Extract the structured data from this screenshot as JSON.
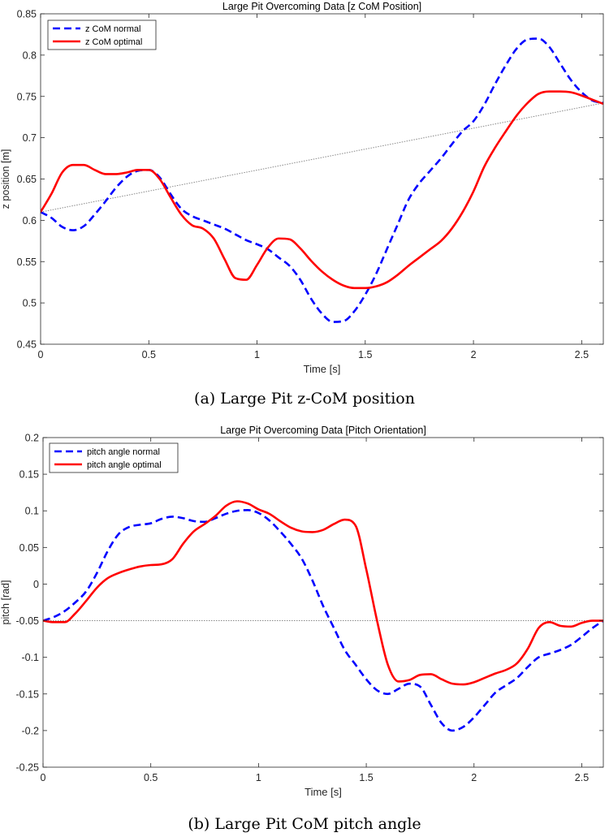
{
  "captions": {
    "a": "(a) Large Pit z-CoM position",
    "b": "(b) Large Pit CoM pitch angle"
  },
  "chart_data": [
    {
      "type": "line",
      "title": "Large Pit Overcoming Data [z CoM Position]",
      "xlabel": "Time [s]",
      "ylabel": "z position [m]",
      "xlim": [
        0,
        2.6
      ],
      "ylim": [
        0.45,
        0.85
      ],
      "xticks": [
        0,
        0.5,
        1,
        1.5,
        2,
        2.5
      ],
      "xtick_labels": [
        "0",
        "0.5",
        "1",
        "1.5",
        "2",
        "2.5"
      ],
      "yticks": [
        0.45,
        0.5,
        0.55,
        0.6,
        0.65,
        0.7,
        0.75,
        0.8,
        0.85
      ],
      "ytick_labels": [
        "0.45",
        "0.5",
        "0.55",
        "0.6",
        "0.65",
        "0.7",
        "0.75",
        "0.8",
        "0.85"
      ],
      "grid": false,
      "legend": "top-left",
      "series": [
        {
          "name": "z CoM normal",
          "color": "#0000ff",
          "style": "dashed",
          "x": [
            0,
            0.05,
            0.1,
            0.15,
            0.2,
            0.25,
            0.3,
            0.35,
            0.4,
            0.45,
            0.5,
            0.55,
            0.6,
            0.65,
            0.7,
            0.75,
            0.8,
            0.85,
            0.9,
            0.95,
            1.0,
            1.05,
            1.1,
            1.15,
            1.2,
            1.25,
            1.3,
            1.35,
            1.4,
            1.45,
            1.5,
            1.55,
            1.6,
            1.65,
            1.7,
            1.75,
            1.8,
            1.85,
            1.9,
            1.95,
            2.0,
            2.05,
            2.1,
            2.15,
            2.2,
            2.25,
            2.3,
            2.35,
            2.4,
            2.45,
            2.5,
            2.55,
            2.6
          ],
          "y": [
            0.61,
            0.603,
            0.592,
            0.588,
            0.593,
            0.607,
            0.623,
            0.64,
            0.653,
            0.66,
            0.661,
            0.652,
            0.632,
            0.614,
            0.605,
            0.6,
            0.595,
            0.59,
            0.583,
            0.576,
            0.571,
            0.565,
            0.555,
            0.545,
            0.528,
            0.505,
            0.487,
            0.477,
            0.478,
            0.49,
            0.51,
            0.535,
            0.565,
            0.595,
            0.625,
            0.645,
            0.66,
            0.675,
            0.692,
            0.708,
            0.72,
            0.74,
            0.765,
            0.788,
            0.808,
            0.819,
            0.82,
            0.81,
            0.79,
            0.77,
            0.755,
            0.745,
            0.742
          ]
        },
        {
          "name": "z CoM optimal",
          "color": "#ff0000",
          "style": "solid",
          "x": [
            0,
            0.05,
            0.1,
            0.15,
            0.2,
            0.25,
            0.3,
            0.35,
            0.4,
            0.45,
            0.5,
            0.55,
            0.6,
            0.65,
            0.7,
            0.75,
            0.8,
            0.85,
            0.9,
            0.95,
            1.0,
            1.05,
            1.1,
            1.15,
            1.2,
            1.25,
            1.3,
            1.35,
            1.4,
            1.45,
            1.5,
            1.55,
            1.6,
            1.65,
            1.7,
            1.75,
            1.8,
            1.85,
            1.9,
            1.95,
            2.0,
            2.05,
            2.1,
            2.15,
            2.2,
            2.25,
            2.3,
            2.35,
            2.4,
            2.45,
            2.5,
            2.55,
            2.6
          ],
          "y": [
            0.61,
            0.632,
            0.658,
            0.667,
            0.667,
            0.661,
            0.656,
            0.656,
            0.658,
            0.661,
            0.661,
            0.65,
            0.628,
            0.607,
            0.594,
            0.59,
            0.578,
            0.553,
            0.53,
            0.528,
            0.546,
            0.567,
            0.578,
            0.577,
            0.566,
            0.551,
            0.538,
            0.528,
            0.521,
            0.518,
            0.518,
            0.52,
            0.525,
            0.534,
            0.545,
            0.555,
            0.565,
            0.575,
            0.59,
            0.61,
            0.635,
            0.665,
            0.688,
            0.708,
            0.727,
            0.742,
            0.753,
            0.756,
            0.756,
            0.755,
            0.751,
            0.746,
            0.741
          ]
        },
        {
          "name": "",
          "color": "#888888",
          "style": "dotted",
          "x": [
            0,
            2.6
          ],
          "y": [
            0.61,
            0.742
          ]
        }
      ]
    },
    {
      "type": "line",
      "title": "Large Pit Overcoming Data [Pitch Orientation]",
      "xlabel": "Time [s]",
      "ylabel": "pitch [rad]",
      "xlim": [
        0,
        2.6
      ],
      "ylim": [
        -0.25,
        0.2
      ],
      "xticks": [
        0,
        0.5,
        1,
        1.5,
        2,
        2.5
      ],
      "xtick_labels": [
        "0",
        "0.5",
        "1",
        "1.5",
        "2",
        "2.5"
      ],
      "yticks": [
        -0.25,
        -0.2,
        -0.15,
        -0.1,
        -0.05,
        0,
        0.05,
        0.1,
        0.15,
        0.2
      ],
      "ytick_labels": [
        "-0.25",
        "-0.2",
        "-0.15",
        "-0.1",
        "-0.05",
        "0",
        "0.05",
        "0.1",
        "0.15",
        "0.2"
      ],
      "grid": false,
      "legend": "top-left",
      "series": [
        {
          "name": "pitch angle normal",
          "color": "#0000ff",
          "style": "dashed",
          "x": [
            0,
            0.05,
            0.1,
            0.15,
            0.2,
            0.25,
            0.3,
            0.35,
            0.4,
            0.45,
            0.5,
            0.55,
            0.6,
            0.65,
            0.7,
            0.75,
            0.8,
            0.85,
            0.9,
            0.95,
            1.0,
            1.05,
            1.1,
            1.15,
            1.2,
            1.25,
            1.3,
            1.35,
            1.4,
            1.45,
            1.5,
            1.55,
            1.6,
            1.65,
            1.7,
            1.75,
            1.8,
            1.85,
            1.9,
            1.95,
            2.0,
            2.05,
            2.1,
            2.15,
            2.2,
            2.25,
            2.3,
            2.35,
            2.4,
            2.45,
            2.5,
            2.55,
            2.6
          ],
          "y": [
            -0.05,
            -0.045,
            -0.037,
            -0.025,
            -0.01,
            0.015,
            0.045,
            0.068,
            0.078,
            0.081,
            0.083,
            0.089,
            0.092,
            0.09,
            0.086,
            0.085,
            0.09,
            0.096,
            0.1,
            0.101,
            0.097,
            0.087,
            0.072,
            0.055,
            0.035,
            0.005,
            -0.03,
            -0.06,
            -0.09,
            -0.11,
            -0.13,
            -0.145,
            -0.15,
            -0.143,
            -0.136,
            -0.14,
            -0.165,
            -0.19,
            -0.2,
            -0.195,
            -0.182,
            -0.165,
            -0.148,
            -0.138,
            -0.128,
            -0.113,
            -0.1,
            -0.095,
            -0.09,
            -0.083,
            -0.072,
            -0.06,
            -0.05
          ]
        },
        {
          "name": "pitch angle optimal",
          "color": "#ff0000",
          "style": "solid",
          "x": [
            0,
            0.05,
            0.1,
            0.15,
            0.2,
            0.25,
            0.3,
            0.35,
            0.4,
            0.45,
            0.5,
            0.55,
            0.6,
            0.65,
            0.7,
            0.75,
            0.8,
            0.85,
            0.9,
            0.95,
            1.0,
            1.05,
            1.1,
            1.15,
            1.2,
            1.25,
            1.3,
            1.35,
            1.4,
            1.45,
            1.5,
            1.55,
            1.6,
            1.65,
            1.7,
            1.75,
            1.8,
            1.85,
            1.9,
            1.95,
            2.0,
            2.05,
            2.1,
            2.15,
            2.2,
            2.25,
            2.3,
            2.35,
            2.4,
            2.45,
            2.5,
            2.55,
            2.6
          ],
          "y": [
            -0.05,
            -0.052,
            -0.052,
            -0.04,
            -0.023,
            -0.005,
            0.008,
            0.015,
            0.02,
            0.024,
            0.026,
            0.027,
            0.034,
            0.055,
            0.072,
            0.082,
            0.093,
            0.107,
            0.113,
            0.11,
            0.102,
            0.096,
            0.086,
            0.077,
            0.072,
            0.071,
            0.074,
            0.082,
            0.088,
            0.08,
            0.02,
            -0.05,
            -0.11,
            -0.133,
            -0.131,
            -0.124,
            -0.123,
            -0.13,
            -0.136,
            -0.137,
            -0.134,
            -0.128,
            -0.122,
            -0.117,
            -0.108,
            -0.088,
            -0.06,
            -0.052,
            -0.057,
            -0.058,
            -0.053,
            -0.05,
            -0.05
          ]
        },
        {
          "name": "",
          "color": "#888888",
          "style": "dotted",
          "x": [
            0,
            2.6
          ],
          "y": [
            -0.05,
            -0.05
          ]
        }
      ]
    }
  ]
}
